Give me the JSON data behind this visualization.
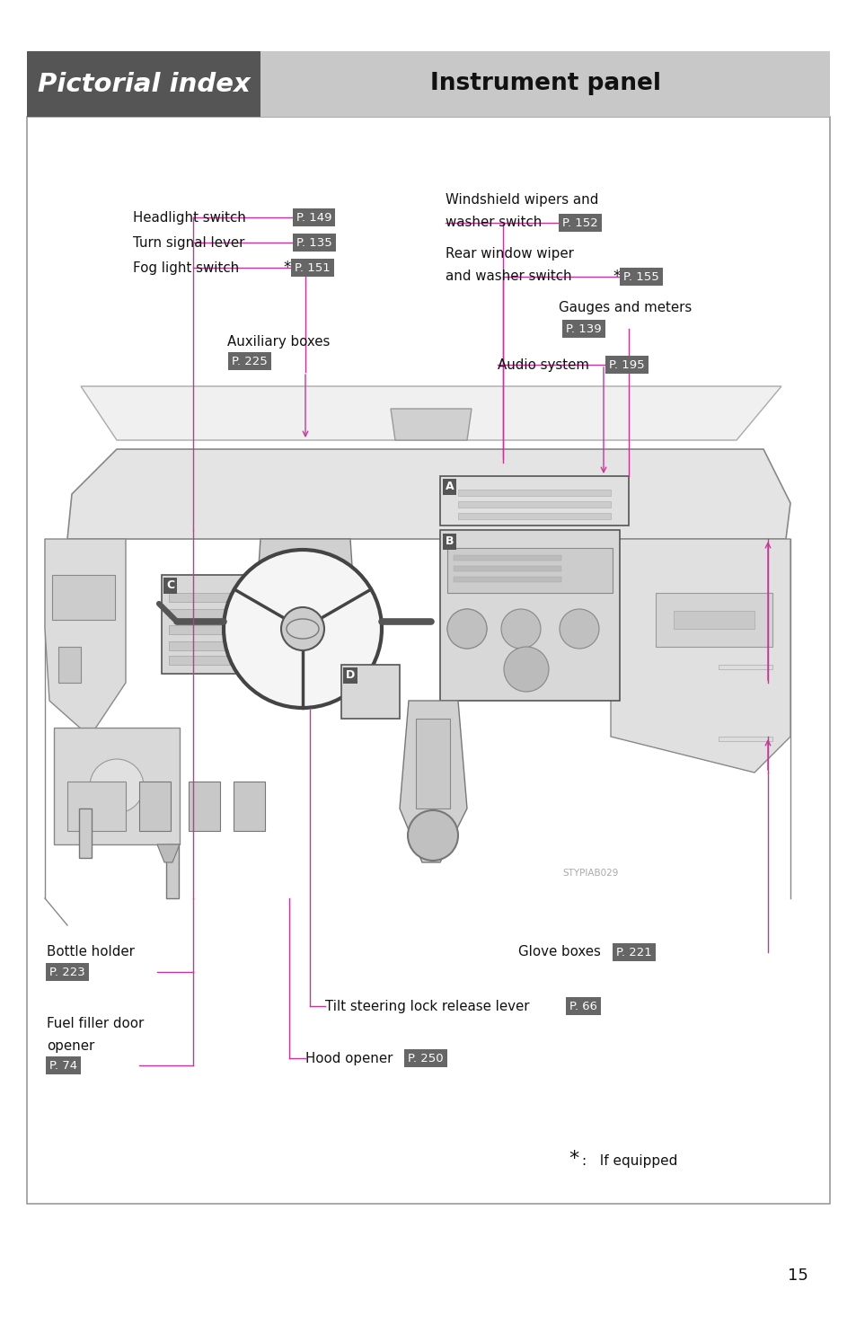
{
  "page_title_left": "Pictorial index",
  "page_title_right": "Instrument panel",
  "header_left_color": "#555555",
  "header_right_color": "#c8c8c8",
  "header_title_color": "#ffffff",
  "header_subtitle_color": "#111111",
  "page_bg": "#ffffff",
  "border_color": "#999999",
  "tag_bg": "#666666",
  "tag_text_color": "#ffffff",
  "line_color": "#cc3399",
  "page_number": "15",
  "watermark": "STYPIAB029",
  "note_text": "*:   If equipped"
}
